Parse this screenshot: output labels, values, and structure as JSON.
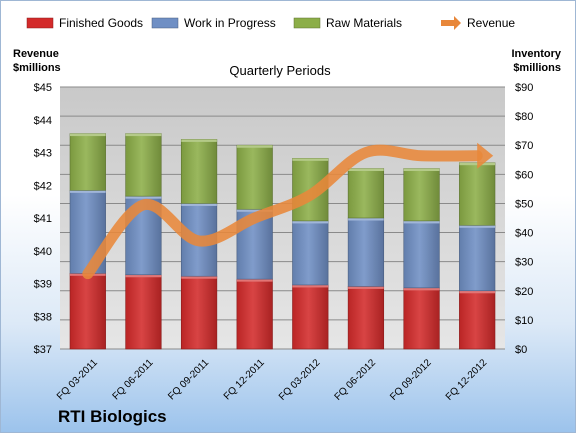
{
  "company": "RTI Biologics",
  "chart_data": {
    "type": "bar",
    "stacked": true,
    "title": "Quarterly Periods",
    "categories": [
      "FQ 03-2011",
      "FQ 06-2011",
      "FQ 09-2011",
      "FQ 12-2011",
      "FQ 03-2012",
      "FQ 06-2012",
      "FQ 09-2012",
      "FQ 12-2012"
    ],
    "left_axis": {
      "label_line1": "Revenue",
      "label_line2": "$millions",
      "min": 37,
      "max": 45,
      "step": 1,
      "prefix": "$"
    },
    "right_axis": {
      "label_line1": "Inventory",
      "label_line2": "$millions",
      "min": 0,
      "max": 90,
      "step": 10,
      "prefix": "$"
    },
    "grid": true,
    "legend_position": "top",
    "series": [
      {
        "name": "Finished Goods",
        "axis": "right",
        "color": "#d32a2a",
        "values": [
          26,
          25.5,
          25,
          24,
          22,
          21.5,
          21,
          20
        ]
      },
      {
        "name": "Work in Progress",
        "axis": "right",
        "color": "#6f8fc4",
        "values": [
          28.5,
          27,
          25,
          24,
          22,
          23.5,
          23,
          22.5
        ]
      },
      {
        "name": "Raw Materials",
        "axis": "right",
        "color": "#8cae48",
        "values": [
          19.5,
          21.5,
          22,
          22,
          21.5,
          17,
          18,
          21.5
        ]
      },
      {
        "name": "Revenue",
        "axis": "left",
        "type": "line",
        "color": "#e8873a",
        "values": [
          39.3,
          41.4,
          40.3,
          41.0,
          41.7,
          43.0,
          42.9,
          42.9
        ],
        "arrow": true
      }
    ]
  }
}
